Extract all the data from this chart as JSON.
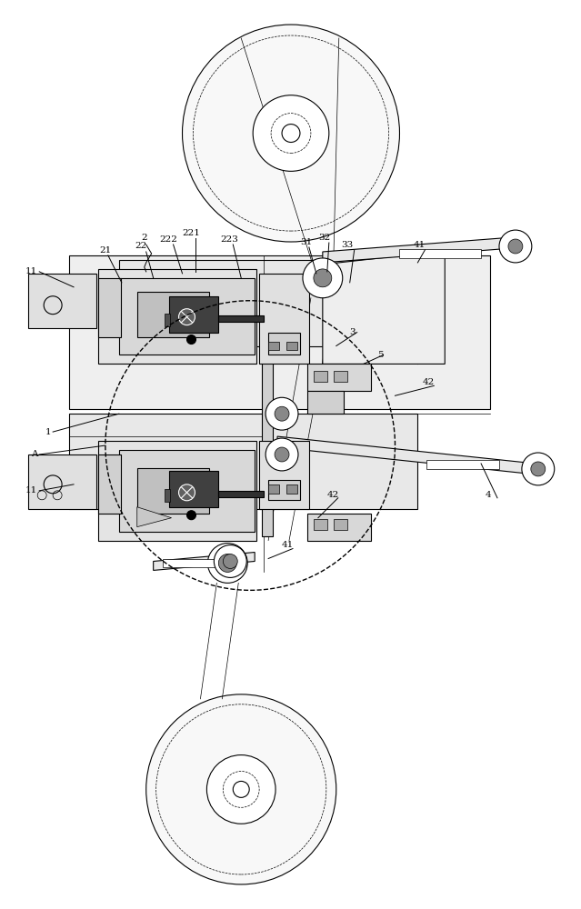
{
  "bg_color": "#ffffff",
  "lc": "#000000",
  "fig_width": 6.39,
  "fig_height": 10.0
}
